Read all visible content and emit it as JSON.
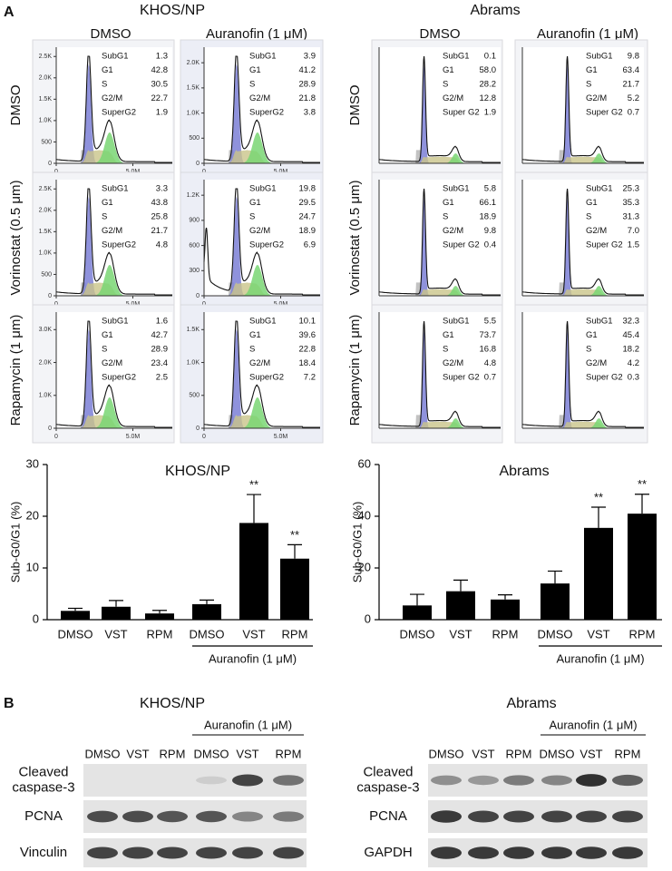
{
  "panel_labels": [
    "A",
    "B"
  ],
  "flow_cytometry": [
    {
      "title": "KHOS/NP",
      "columns": [
        "DMSO",
        "Auranofin (1 μM)"
      ],
      "rows": [
        "DMSO",
        "Vorinostat (0.5 μm)",
        "Rapamycin (1 μm)"
      ],
      "stat_labels": [
        "SubG1",
        "G1",
        "S",
        "G2/M",
        "SuperG2"
      ],
      "xticks": [
        "0",
        "5.0M"
      ],
      "panels": [
        [
          {
            "stats": [
              "1.3",
              "42.8",
              "30.5",
              "22.7",
              "1.9"
            ],
            "yticks": [
              "0",
              "500",
              "1.0K",
              "1.5K",
              "2.0K",
              "2.5K"
            ]
          },
          {
            "stats": [
              "3.9",
              "41.2",
              "28.9",
              "21.8",
              "3.8"
            ],
            "yticks": [
              "0",
              "500",
              "1.0K",
              "1.5K",
              "2.0K"
            ]
          }
        ],
        [
          {
            "stats": [
              "3.3",
              "43.8",
              "25.8",
              "21.7",
              "4.8"
            ],
            "yticks": [
              "0",
              "500",
              "1.0K",
              "1.5K",
              "2.0K",
              "2.5K"
            ]
          },
          {
            "stats": [
              "19.8",
              "29.5",
              "24.7",
              "18.9",
              "6.9"
            ],
            "yticks": [
              "0",
              "300",
              "600",
              "900",
              "1.2K"
            ]
          }
        ],
        [
          {
            "stats": [
              "1.6",
              "42.7",
              "28.9",
              "23.4",
              "2.5"
            ],
            "yticks": [
              "0",
              "1.0K",
              "2.0K",
              "3.0K"
            ]
          },
          {
            "stats": [
              "10.1",
              "39.6",
              "22.8",
              "18.4",
              "7.2"
            ],
            "yticks": [
              "0",
              "500",
              "1.0K",
              "1.5K"
            ]
          }
        ]
      ]
    },
    {
      "title": "Abrams",
      "columns": [
        "DMSO",
        "Auranofin (1 μM)"
      ],
      "rows": [
        "DMSO",
        "Vorinostat (0.5 μm)",
        "Rapamycin (1 μm)"
      ],
      "stat_labels": [
        "SubG1",
        "G1",
        "S",
        "G2/M",
        "Super G2"
      ],
      "panels": [
        [
          {
            "stats": [
              "0.1",
              "58.0",
              "28.2",
              "12.8",
              "1.9"
            ]
          },
          {
            "stats": [
              "9.8",
              "63.4",
              "21.7",
              "5.2",
              "0.7"
            ]
          }
        ],
        [
          {
            "stats": [
              "5.8",
              "66.1",
              "18.9",
              "9.8",
              "0.4"
            ]
          },
          {
            "stats": [
              "25.3",
              "35.3",
              "31.3",
              "7.0",
              "1.5"
            ]
          }
        ],
        [
          {
            "stats": [
              "5.5",
              "73.7",
              "16.8",
              "4.8",
              "0.7"
            ]
          },
          {
            "stats": [
              "32.3",
              "45.4",
              "18.2",
              "4.2",
              "0.3"
            ]
          }
        ]
      ]
    }
  ],
  "chart_data": [
    {
      "type": "bar",
      "title": "KHOS/NP",
      "y_label": "Sub-G0/G1 (%)",
      "categories": [
        "DMSO",
        "VST",
        "RPM",
        "DMSO",
        "VST",
        "RPM"
      ],
      "values": [
        1.7,
        2.5,
        1.2,
        3.0,
        18.7,
        11.8
      ],
      "errors": [
        0.5,
        1.2,
        0.6,
        0.8,
        5.5,
        2.7
      ],
      "significance": [
        null,
        null,
        null,
        null,
        "**",
        "**"
      ],
      "group_label": "Auranofin (1 μM)",
      "color": "#000000",
      "ylim": [
        0,
        30
      ],
      "yticks": [
        0,
        10,
        20,
        30
      ]
    },
    {
      "type": "bar",
      "title": "Abrams",
      "y_label": "Sub-G0/G1 (%)",
      "categories": [
        "DMSO",
        "VST",
        "RPM",
        "DMSO",
        "VST",
        "RPM"
      ],
      "values": [
        5.5,
        11,
        7.8,
        14,
        35.5,
        41
      ],
      "errors": [
        4.3,
        4.3,
        1.8,
        4.8,
        8,
        7.5
      ],
      "significance": [
        null,
        null,
        null,
        null,
        "**",
        "**"
      ],
      "group_label": "Auranofin (1 μM)",
      "color": "#000000",
      "ylim": [
        0,
        60
      ],
      "yticks": [
        0,
        20,
        40,
        60
      ]
    }
  ],
  "western_blots": [
    {
      "title": "KHOS/NP",
      "group_label": "Auranofin (1 μM)",
      "lanes": [
        "DMSO",
        "VST",
        "RPM",
        "DMSO",
        "VST",
        "RPM"
      ],
      "rows": [
        [
          "Cleaved",
          "caspase-3"
        ],
        [
          "PCNA"
        ],
        [
          "Vinculin"
        ]
      ]
    },
    {
      "title": "Abrams",
      "group_label": "Auranofin (1 μM)",
      "lanes": [
        "DMSO",
        "VST",
        "RPM",
        "DMSO",
        "VST",
        "RPM"
      ],
      "rows": [
        [
          "Cleaved",
          "caspase-3"
        ],
        [
          "PCNA"
        ],
        [
          "GAPDH"
        ]
      ]
    }
  ]
}
